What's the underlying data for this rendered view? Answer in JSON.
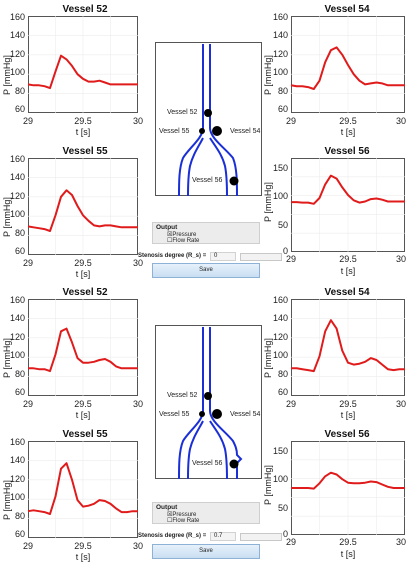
{
  "top": {
    "panels": {
      "v52": {
        "title": "Vessel 52",
        "ylabel": "P [mmHg]",
        "xlabel": "t [s]",
        "yticks": [
          "160",
          "140",
          "120",
          "100",
          "80",
          "60"
        ],
        "xticks": [
          "29",
          "29.5",
          "30"
        ]
      },
      "v55": {
        "title": "Vessel 55",
        "ylabel": "P [mmHg]",
        "xlabel": "t [s]",
        "yticks": [
          "160",
          "140",
          "120",
          "100",
          "80",
          "60"
        ],
        "xticks": [
          "29",
          "29.5",
          "30"
        ]
      },
      "v54": {
        "title": "Vessel 54",
        "ylabel": "P [mmHg]",
        "xlabel": "t [s]",
        "yticks": [
          "160",
          "140",
          "120",
          "100",
          "80",
          "60"
        ],
        "xticks": [
          "29",
          "29.5",
          "30"
        ]
      },
      "v56": {
        "title": "Vessel 56",
        "ylabel": "P [mmHg]",
        "xlabel": "t [s]",
        "yticks": [
          "150",
          "100",
          "50",
          "0"
        ],
        "xticks": [
          "29",
          "29.5",
          "30"
        ]
      }
    },
    "diagram": {
      "labels": [
        "Vessel 52",
        "Vessel 55",
        "Vessel 54",
        "Vessel 56"
      ]
    },
    "output": {
      "title": "Output",
      "options": [
        "☒Pressure",
        "☐Flow Rate"
      ]
    },
    "stenosis": {
      "label": "Stenosis degree (R_s) =",
      "value": "0"
    },
    "save": "Save"
  },
  "bottom": {
    "panels": {
      "v52": {
        "title": "Vessel 52",
        "ylabel": "P [mmHg]",
        "xlabel": "t [s]",
        "yticks": [
          "160",
          "140",
          "120",
          "100",
          "80",
          "60"
        ],
        "xticks": [
          "29",
          "29.5",
          "30"
        ]
      },
      "v55": {
        "title": "Vessel 55",
        "ylabel": "P [mmHg]",
        "xlabel": "t [s]",
        "yticks": [
          "160",
          "140",
          "120",
          "100",
          "80",
          "60"
        ],
        "xticks": [
          "29",
          "29.5",
          "30"
        ]
      },
      "v54": {
        "title": "Vessel 54",
        "ylabel": "P [mmHg]",
        "xlabel": "t [s]",
        "yticks": [
          "160",
          "140",
          "120",
          "100",
          "80",
          "60"
        ],
        "xticks": [
          "29",
          "29.5",
          "30"
        ]
      },
      "v56": {
        "title": "Vessel 56",
        "ylabel": "P [mmHg]",
        "xlabel": "t [s]",
        "yticks": [
          "150",
          "100",
          "50",
          "0"
        ],
        "xticks": [
          "29",
          "29.5",
          "30"
        ]
      }
    },
    "diagram": {
      "labels": [
        "Vessel 52",
        "Vessel 55",
        "Vessel 54",
        "Vessel 56"
      ]
    },
    "output": {
      "title": "Output",
      "options": [
        "☒Pressure",
        "☐Flow Rate"
      ]
    },
    "stenosis": {
      "label": "Stenosis degree (R_s) =",
      "value": "0.7"
    },
    "save": "Save"
  },
  "colors": {
    "curve": "#e01b1b",
    "vessel": "#1a2fd6",
    "node": "#000000"
  },
  "chart_data": [
    {
      "type": "line",
      "title": "Vessel 52",
      "xlabel": "t [s]",
      "ylabel": "P [mmHg]",
      "xlim": [
        29,
        30
      ],
      "ylim": [
        55,
        160
      ],
      "x": [
        29,
        29.05,
        29.1,
        29.15,
        29.2,
        29.25,
        29.3,
        29.35,
        29.4,
        29.45,
        29.5,
        29.55,
        29.6,
        29.65,
        29.7,
        29.75,
        29.8,
        29.85,
        29.9,
        29.95,
        30
      ],
      "series": [
        {
          "values": [
            86,
            85,
            85,
            84,
            82,
            100,
            117,
            113,
            106,
            97,
            92,
            89,
            89,
            90,
            88,
            86,
            86,
            86,
            86,
            86,
            86
          ]
        }
      ]
    },
    {
      "type": "line",
      "title": "Vessel 55",
      "xlabel": "t [s]",
      "ylabel": "P [mmHg]",
      "xlim": [
        29,
        30
      ],
      "ylim": [
        55,
        160
      ],
      "x": [
        29,
        29.05,
        29.1,
        29.15,
        29.2,
        29.25,
        29.3,
        29.35,
        29.4,
        29.45,
        29.5,
        29.55,
        29.6,
        29.65,
        29.7,
        29.75,
        29.8,
        29.85,
        29.9,
        29.95,
        30
      ],
      "series": [
        {
          "values": [
            86,
            85,
            84,
            83,
            81,
            98,
            118,
            125,
            120,
            108,
            98,
            92,
            87,
            86,
            87,
            87,
            86,
            85,
            85,
            85,
            85
          ]
        }
      ]
    },
    {
      "type": "line",
      "title": "Vessel 54",
      "xlabel": "t [s]",
      "ylabel": "P [mmHg]",
      "xlim": [
        29,
        30
      ],
      "ylim": [
        55,
        160
      ],
      "x": [
        29,
        29.05,
        29.1,
        29.15,
        29.2,
        29.25,
        29.3,
        29.35,
        29.4,
        29.45,
        29.5,
        29.55,
        29.6,
        29.65,
        29.7,
        29.75,
        29.8,
        29.85,
        29.9,
        29.95,
        30
      ],
      "series": [
        {
          "values": [
            85,
            84,
            84,
            83,
            81,
            90,
            110,
            123,
            126,
            118,
            107,
            97,
            90,
            86,
            87,
            88,
            87,
            85,
            85,
            85,
            85
          ]
        }
      ]
    },
    {
      "type": "line",
      "title": "Vessel 56",
      "xlabel": "t [s]",
      "ylabel": "P [mmHg]",
      "xlim": [
        29,
        30
      ],
      "ylim": [
        0,
        160
      ],
      "x": [
        29,
        29.05,
        29.1,
        29.15,
        29.2,
        29.25,
        29.3,
        29.35,
        29.4,
        29.45,
        29.5,
        29.55,
        29.6,
        29.65,
        29.7,
        29.75,
        29.8,
        29.85,
        29.9,
        29.95,
        30
      ],
      "series": [
        {
          "values": [
            85,
            85,
            84,
            84,
            82,
            92,
            115,
            130,
            125,
            110,
            97,
            88,
            84,
            86,
            90,
            91,
            89,
            86,
            86,
            86,
            86
          ]
        }
      ]
    },
    {
      "type": "line",
      "title": "Vessel 52",
      "xlabel": "t [s]",
      "ylabel": "P [mmHg]",
      "xlim": [
        29,
        30
      ],
      "ylim": [
        55,
        160
      ],
      "x": [
        29,
        29.05,
        29.1,
        29.15,
        29.2,
        29.25,
        29.3,
        29.35,
        29.4,
        29.45,
        29.5,
        29.55,
        29.6,
        29.65,
        29.7,
        29.75,
        29.8,
        29.85,
        29.9,
        29.95,
        30
      ],
      "series": [
        {
          "values": [
            85,
            85,
            84,
            84,
            82,
            100,
            125,
            128,
            113,
            96,
            91,
            91,
            92,
            94,
            95,
            92,
            87,
            85,
            85,
            85,
            85
          ]
        }
      ]
    },
    {
      "type": "line",
      "title": "Vessel 55",
      "xlabel": "t [s]",
      "ylabel": "P [mmHg]",
      "xlim": [
        29,
        30
      ],
      "ylim": [
        55,
        160
      ],
      "x": [
        29,
        29.05,
        29.1,
        29.15,
        29.2,
        29.25,
        29.3,
        29.35,
        29.4,
        29.45,
        29.5,
        29.55,
        29.6,
        29.65,
        29.7,
        29.75,
        29.8,
        29.85,
        29.9,
        29.95,
        30
      ],
      "series": [
        {
          "values": [
            84,
            85,
            84,
            83,
            81,
            100,
            130,
            136,
            118,
            96,
            89,
            90,
            92,
            96,
            95,
            92,
            87,
            83,
            83,
            84,
            84
          ]
        }
      ]
    },
    {
      "type": "line",
      "title": "Vessel 54",
      "xlabel": "t [s]",
      "ylabel": "P [mmHg]",
      "xlim": [
        29,
        30
      ],
      "ylim": [
        55,
        160
      ],
      "x": [
        29,
        29.05,
        29.1,
        29.15,
        29.2,
        29.25,
        29.3,
        29.35,
        29.4,
        29.45,
        29.5,
        29.55,
        29.6,
        29.65,
        29.7,
        29.75,
        29.8,
        29.85,
        29.9,
        29.95,
        30
      ],
      "series": [
        {
          "values": [
            85,
            85,
            84,
            83,
            82,
            98,
            125,
            137,
            128,
            104,
            91,
            89,
            90,
            92,
            96,
            94,
            89,
            84,
            83,
            84,
            84
          ]
        }
      ]
    },
    {
      "type": "line",
      "title": "Vessel 56",
      "xlabel": "t [s]",
      "ylabel": "P [mmHg]",
      "xlim": [
        29,
        30
      ],
      "ylim": [
        0,
        160
      ],
      "x": [
        29,
        29.05,
        29.1,
        29.15,
        29.2,
        29.25,
        29.3,
        29.35,
        29.4,
        29.45,
        29.5,
        29.55,
        29.6,
        29.65,
        29.7,
        29.75,
        29.8,
        29.85,
        29.9,
        29.95,
        30
      ],
      "series": [
        {
          "values": [
            80,
            80,
            80,
            80,
            79,
            88,
            100,
            106,
            103,
            95,
            89,
            88,
            88,
            89,
            91,
            90,
            86,
            82,
            80,
            80,
            80
          ]
        }
      ]
    }
  ]
}
